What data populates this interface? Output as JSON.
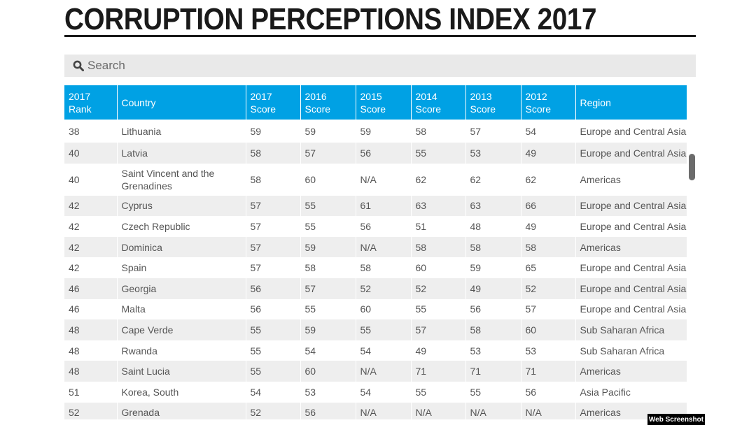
{
  "page": {
    "title": "CORRUPTION PERCEPTIONS INDEX 2017"
  },
  "search": {
    "placeholder": "Search",
    "icon": "search-icon"
  },
  "table": {
    "headers": [
      [
        "2017",
        "Rank"
      ],
      [
        "Country",
        ""
      ],
      [
        "2017",
        "Score"
      ],
      [
        "2016",
        "Score"
      ],
      [
        "2015",
        "Score"
      ],
      [
        "2014",
        "Score"
      ],
      [
        "2013",
        "Score"
      ],
      [
        "2012",
        "Score"
      ],
      [
        "Region",
        ""
      ]
    ],
    "rows": [
      [
        "38",
        "Lithuania",
        "59",
        "59",
        "59",
        "58",
        "57",
        "54",
        "Europe and Central Asia"
      ],
      [
        "40",
        "Latvia",
        "58",
        "57",
        "56",
        "55",
        "53",
        "49",
        "Europe and Central Asia"
      ],
      [
        "40",
        "Saint Vincent and the Grenadines",
        "58",
        "60",
        "N/A",
        "62",
        "62",
        "62",
        "Americas"
      ],
      [
        "42",
        "Cyprus",
        "57",
        "55",
        "61",
        "63",
        "63",
        "66",
        "Europe and Central Asia"
      ],
      [
        "42",
        "Czech Republic",
        "57",
        "55",
        "56",
        "51",
        "48",
        "49",
        "Europe and Central Asia"
      ],
      [
        "42",
        "Dominica",
        "57",
        "59",
        "N/A",
        "58",
        "58",
        "58",
        "Americas"
      ],
      [
        "42",
        "Spain",
        "57",
        "58",
        "58",
        "60",
        "59",
        "65",
        "Europe and Central Asia"
      ],
      [
        "46",
        "Georgia",
        "56",
        "57",
        "52",
        "52",
        "49",
        "52",
        "Europe and Central Asia"
      ],
      [
        "46",
        "Malta",
        "56",
        "55",
        "60",
        "55",
        "56",
        "57",
        "Europe and Central Asia"
      ],
      [
        "48",
        "Cape Verde",
        "55",
        "59",
        "55",
        "57",
        "58",
        "60",
        "Sub Saharan Africa"
      ],
      [
        "48",
        "Rwanda",
        "55",
        "54",
        "54",
        "49",
        "53",
        "53",
        "Sub Saharan Africa"
      ],
      [
        "48",
        "Saint Lucia",
        "55",
        "60",
        "N/A",
        "71",
        "71",
        "71",
        "Americas"
      ],
      [
        "51",
        "Korea, South",
        "54",
        "53",
        "54",
        "55",
        "55",
        "56",
        "Asia Pacific"
      ],
      [
        "52",
        "Grenada",
        "52",
        "56",
        "N/A",
        "N/A",
        "N/A",
        "N/A",
        "Americas"
      ]
    ]
  },
  "badge": {
    "label": "Web Screenshot"
  },
  "colors": {
    "header_bg": "#00a1e4",
    "row_alt_bg": "#eeeeee",
    "search_bg": "#e9e9e9",
    "title_color": "#1a1a1a"
  }
}
